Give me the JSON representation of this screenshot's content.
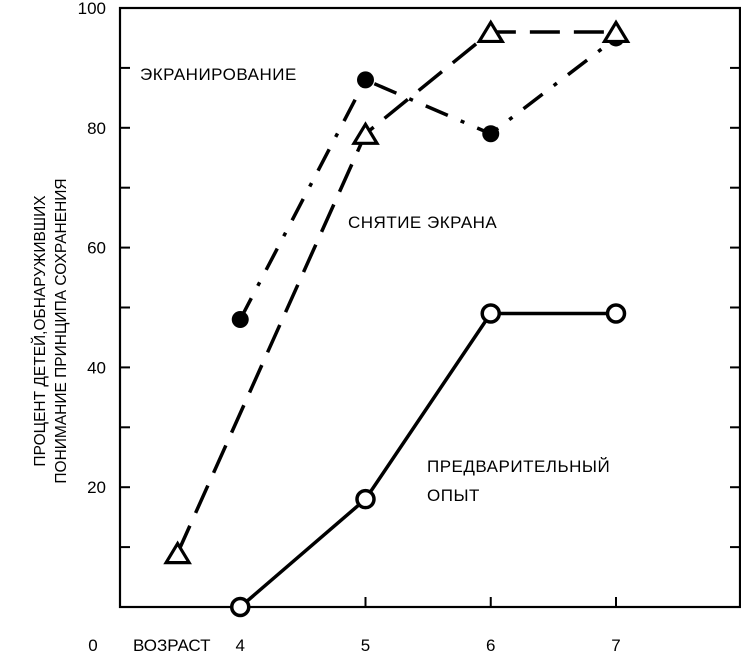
{
  "chart_data": {
    "type": "line",
    "xlabel": "ВОЗРАСТ",
    "ylabel_lines": [
      "ПРОЦЕНТ ДЕТЕЙ,ОБНАРУЖИВШИХ",
      "ПОНИМАНИЕ ПРИНЦИПА СОХРАНЕНИЯ"
    ],
    "x_origin_label": "0",
    "x_ticks": [
      "4",
      "5",
      "6",
      "7"
    ],
    "y_ticks": [
      "20",
      "40",
      "60",
      "80",
      "100"
    ],
    "xlim": [
      3.04,
      7.99
    ],
    "ylim": [
      0,
      100
    ],
    "grid": false,
    "series": [
      {
        "name": "ЭКРАНИРОВАНИЕ",
        "marker": "filled-circle",
        "line_style": "dash-dot",
        "x": [
          4,
          5,
          6,
          7
        ],
        "y": [
          48,
          88,
          79,
          95
        ]
      },
      {
        "name": "СНЯТИЕ ЭКРАНА",
        "marker": "open-triangle",
        "line_style": "long-dash",
        "x": [
          3.5,
          5,
          6,
          7
        ],
        "y": [
          9,
          79,
          96,
          96
        ]
      },
      {
        "name": "ПРЕДВАРИТЕЛЬНЫЙ ОПЫТ",
        "name_lines": [
          "ПРЕДВАРИТЕЛЬНЫЙ",
          "ОПЫТ"
        ],
        "marker": "open-circle",
        "line_style": "solid",
        "x": [
          4,
          5,
          6,
          7
        ],
        "y": [
          0,
          18,
          49,
          49
        ]
      }
    ]
  }
}
